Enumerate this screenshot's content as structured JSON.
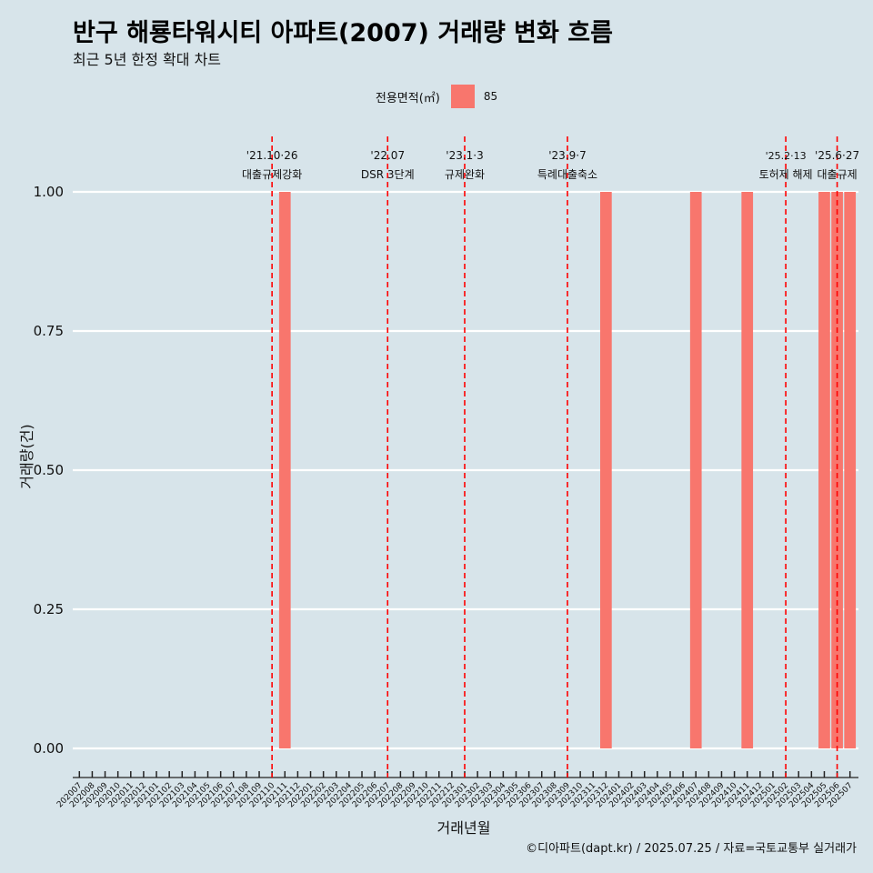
{
  "title": "반구 해룡타워시티 아파트(2007) 거래량 변화 흐름",
  "subtitle": "최근 5년 한정 확대 차트",
  "caption": "©디아파트(dapt.kr) / 2025.07.25 / 자료=국토교통부 실거래가",
  "colors": {
    "background": "#d7e4ea",
    "bar": "#f8766d",
    "vline": "#ff0000",
    "grid": "#ffffff"
  },
  "chart_data": {
    "type": "bar",
    "xlabel": "거래년월",
    "ylabel": "거래량(건)",
    "ylim": [
      0,
      1
    ],
    "yticks": [
      "0.00",
      "0.25",
      "0.50",
      "0.75",
      "1.00"
    ],
    "grid": true,
    "legend": {
      "position": "top",
      "title": "전용면적(㎡)",
      "entries": [
        "85"
      ]
    },
    "categories": [
      "202007",
      "202008",
      "202009",
      "202010",
      "202011",
      "202012",
      "202101",
      "202102",
      "202103",
      "202104",
      "202105",
      "202106",
      "202107",
      "202108",
      "202109",
      "202110",
      "202111",
      "202112",
      "202201",
      "202202",
      "202203",
      "202204",
      "202205",
      "202206",
      "202207",
      "202208",
      "202209",
      "202210",
      "202211",
      "202212",
      "202301",
      "202302",
      "202303",
      "202304",
      "202305",
      "202306",
      "202307",
      "202308",
      "202309",
      "202310",
      "202311",
      "202312",
      "202401",
      "202402",
      "202403",
      "202404",
      "202405",
      "202406",
      "202407",
      "202408",
      "202409",
      "202410",
      "202411",
      "202412",
      "202501",
      "202502",
      "202503",
      "202504",
      "202505",
      "202506",
      "202507"
    ],
    "series": [
      {
        "name": "85",
        "values": [
          0,
          0,
          0,
          0,
          0,
          0,
          0,
          0,
          0,
          0,
          0,
          0,
          0,
          0,
          0,
          0,
          1,
          0,
          0,
          0,
          0,
          0,
          0,
          0,
          0,
          0,
          0,
          0,
          0,
          0,
          0,
          0,
          0,
          0,
          0,
          0,
          0,
          0,
          0,
          0,
          0,
          1,
          0,
          0,
          0,
          0,
          0,
          0,
          1,
          0,
          0,
          0,
          1,
          0,
          0,
          0,
          0,
          0,
          1,
          1,
          1
        ]
      }
    ],
    "annotations": [
      {
        "category": "202110",
        "date": "'21.10·26",
        "label": "대출규제강화"
      },
      {
        "category": "202207",
        "date": "'22.07",
        "label": "DSR 3단계"
      },
      {
        "category": "202301",
        "date": "'23.1·3",
        "label": "규제완화"
      },
      {
        "category": "202309",
        "date": "'23.9·7",
        "label": "특례대출축소"
      },
      {
        "category": "202502",
        "date": "'25.2·13",
        "label": "토허제 해제"
      },
      {
        "category": "202506",
        "date": "'25.6·27",
        "label": "대출규제"
      }
    ]
  }
}
